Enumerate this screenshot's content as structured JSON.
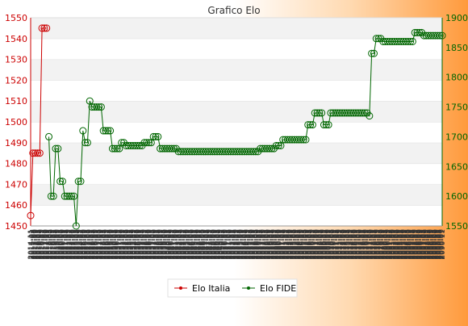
{
  "chart_data": {
    "type": "line",
    "title": "Grafico Elo",
    "y_left": {
      "min": 1450,
      "max": 1550,
      "ticks": [
        1450,
        1460,
        1470,
        1480,
        1490,
        1500,
        1510,
        1520,
        1530,
        1540,
        1550
      ],
      "color": "#cc0000"
    },
    "y_right": {
      "min": 1550,
      "max": 1900,
      "ticks": [
        1550,
        1600,
        1650,
        1700,
        1750,
        1800,
        1850,
        1900
      ],
      "color": "#006600"
    },
    "x_tick_labels": [
      "2014-11",
      "2015-01",
      "2015-03",
      "2015-05",
      "2015-07",
      "2015-09",
      "2015-11",
      "2016-01",
      "2016-03",
      "2016-05",
      "2016-07",
      "2016-09",
      "2016-11",
      "2017-01",
      "2017-03",
      "2017-05",
      "2017-07",
      "2017-09",
      "2017-11",
      "2018-01",
      "2018-03",
      "2018-05",
      "2018-07",
      "2018-09",
      "2018-11",
      "2019-01",
      "2019-03",
      "2019-05",
      "2019-07",
      "2019-09",
      "2019-11",
      "2020-01",
      "2020-03",
      "2020-05",
      "2020-07",
      "2020-09",
      "2020-11",
      "2021-01",
      "2021-03",
      "2021-05",
      "2021-07",
      "2021-09",
      "2021-11",
      "2022-01",
      "2022-03",
      "2022-05",
      "2022-07",
      "2022-09",
      "2022-11",
      "2023-01",
      "2023-03",
      "2023-05",
      "2023-07",
      "2023-09",
      "2023-11",
      "2024-01",
      "2024-03",
      "2024-05",
      "2024-07",
      "2024-09",
      "2024-11",
      "2025-01",
      "2025-03",
      "2025-05",
      "2025-07",
      "2025-09",
      "2025-11",
      "2026-01",
      "2026-03",
      "2026-05",
      "2026-07",
      "2026-09",
      "2026-11",
      "2027-01",
      "2027-03",
      "2027-05",
      "2027-07",
      "2027-09",
      "2027-11",
      "2028-01",
      "2028-03",
      "2028-05",
      "2028-07",
      "2028-09",
      "2028-11",
      "2029-01",
      "2029-03",
      "2029-05",
      "2029-07",
      "2029-09",
      "2029-11",
      "2030-01",
      "2030-03",
      "2030-05",
      "2030-07",
      "2030-09",
      "2030-11",
      "2031-01",
      "2031-03",
      "2031-05",
      "2031-07",
      "2031-09",
      "2031-11",
      "2032-01",
      "2032-03",
      "2032-05",
      "2032-07",
      "2032-09",
      "2032-11",
      "2033-01",
      "2033-03",
      "2033-05",
      "2033-07",
      "2033-09",
      "2033-11",
      "2034-01",
      "2034-03",
      "2034-05",
      "2034-07",
      "2034-09",
      "2034-11",
      "2035-01",
      "2035-03",
      "2035-05",
      "2035-07",
      "2035-09",
      "2035-11",
      "2036-01",
      "2036-03",
      "2036-05",
      "2036-07",
      "2036-09",
      "2036-11",
      "2037-01",
      "2037-03",
      "2037-05",
      "2037-07",
      "2037-09",
      "2037-11",
      "2038-01",
      "2038-03",
      "2038-05",
      "2038-07",
      "2038-09",
      "2038-11",
      "2039-01",
      "2039-03",
      "2039-05",
      "2039-07",
      "2039-09",
      "2039-11",
      "2040-01",
      "2040-03",
      "2040-05",
      "2040-07",
      "2040-09",
      "2040-11",
      "2041-01",
      "2041-03",
      "2041-05",
      "2041-07",
      "2041-09",
      "2041-11",
      "2042-01",
      "2042-03",
      "2042-05",
      "2042-07",
      "2042-09",
      "2042-11",
      "2043-01",
      "2043-03",
      "2043-05",
      "2043-07",
      "2043-09",
      "2043-11",
      "2044-01",
      "2044-03",
      "2044-05",
      "2044-07",
      "2044-09",
      "2044-11",
      "2045-01",
      "2045-03",
      "2045-05",
      "2045-07",
      "2045-09",
      "2045-11",
      "2046-01",
      "2046-03",
      "2046-05",
      "2046-07",
      "2046-09",
      "2046-11",
      "2047-01",
      "2047-03",
      "2047-05",
      "2047-07",
      "2047-09",
      "2047-11",
      "2048-01",
      "2048-03",
      "2048-05",
      "2048-07",
      "2048-09",
      "2048-11",
      "2049-01",
      "2049-03",
      "2049-05",
      "2049-07",
      "2049-09",
      "2049-11",
      "2050-01",
      "2050-03",
      "2050-05",
      "2050-07",
      "2050-09",
      "2050-11",
      "2051-01",
      "2051-03",
      "2051-05",
      "2051-07",
      "2051-09",
      "2051-11",
      "2052-01",
      "2052-03",
      "2052-05",
      "2052-07",
      "2052-09",
      "2052-11",
      "2053-01",
      "2053-03",
      "2053-05",
      "2053-07",
      "2053-09",
      "2053-11",
      "2054-01",
      "2054-03",
      "2054-05",
      "2054-07",
      "2054-09",
      "2054-11",
      "2055-01",
      "2055-03",
      "2055-05",
      "2055-07",
      "2055-09",
      "2055-11",
      "2056-01",
      "2056-03",
      "2056-05",
      "2056-07",
      "2056-09",
      "2056-11",
      "2057-01",
      "2057-03",
      "2057-05",
      "2057-07",
      "2057-09",
      "2057-11",
      "2058-01",
      "2058-03",
      "2058-05",
      "2058-07",
      "2058-09",
      "2058-11",
      "2059-01",
      "2059-03",
      "2059-05",
      "2059-07",
      "2059-09",
      "2059-11",
      "2060-01",
      "2060-03",
      "2060-05",
      "2060-07",
      "2060-09",
      "2060-11",
      "2061-01",
      "2061-03",
      "2061-05",
      "2061-07",
      "2061-09",
      "2061-11",
      "2062-01",
      "2062-03",
      "2062-05",
      "2062-07",
      "2062-09",
      "2062-11",
      "2063-01",
      "2063-03",
      "2063-05",
      "2063-07",
      "2063-09",
      "2063-11",
      "2064-01",
      "2064-03",
      "2064-05",
      "2064-07",
      "2064-09",
      "2064-11",
      "2065-01",
      "2065-03",
      "2065-05",
      "2065-07",
      "2065-09",
      "2065-11",
      "2066-01",
      "2066-03",
      "2066-05",
      "2066-07",
      "2066-09",
      "2066-11",
      "2067-01",
      "2067-03",
      "2067-05",
      "2067-07",
      "2067-09",
      "2067-11",
      "2068-01",
      "2068-03",
      "2068-05",
      "2068-07",
      "2068-09",
      "2068-11",
      "2069-01",
      "2069-03",
      "2069-05",
      "2069-07",
      "2069-09",
      "2069-11",
      "2070-01",
      "2070-03",
      "2070-05",
      "2070-07",
      "2070-09",
      "2070-11",
      "2071-01",
      "2071-03",
      "2071-05",
      "2071-07",
      "2071-09",
      "2071-11",
      "2072-01",
      "2072-03",
      "2072-05",
      "2072-07",
      "2072-09",
      "2072-11",
      "2073-01",
      "2073-03",
      "2073-05",
      "2073-07",
      "2073-09",
      "2073-11",
      "2074-01",
      "2074-03",
      "2074-05",
      "2074-07",
      "2074-09",
      "2074-11",
      "2075-01",
      "2075-03",
      "2075-05",
      "2075-07",
      "2075-09",
      "2075-11",
      "2076-01",
      "2076-03",
      "2076-05",
      "2076-07",
      "2076-09",
      "2076-11",
      "2077-01",
      "2077-03",
      "2077-05",
      "2077-07",
      "2077-09",
      "2077-11",
      "2078-01",
      "2078-03",
      "2078-05",
      "2078-07",
      "2078-09",
      "2078-11",
      "2079-01",
      "2079-03",
      "2079-05",
      "2079-07",
      "2079-09",
      "2079-11",
      "2080-01",
      "2080-03",
      "2080-05",
      "2080-07",
      "2080-09",
      "2080-11",
      "2081-01",
      "2081-03",
      "2081-05",
      "2081-07",
      "2081-09",
      "2081-11",
      "2082-01",
      "2082-03",
      "2082-05",
      "2082-07",
      "2082-09",
      "2082-11",
      "2083-01",
      "2083-03",
      "2083-05",
      "2083-07",
      "2083-09",
      "2083-11",
      "2084-01",
      "2084-03",
      "2084-05",
      "2084-07",
      "2084-09",
      "2084-11",
      "2085-01",
      "2085-03",
      "2085-05",
      "2085-07",
      "2085-09",
      "2085-11",
      "2086-01",
      "2086-03",
      "2086-05",
      "2086-07",
      "2086-09",
      "2086-11",
      "2087-01",
      "2087-03",
      "2087-05",
      "2087-07",
      "2087-09",
      "2087-11",
      "2088-01",
      "2088-03",
      "2088-05",
      "2088-07",
      "2088-09",
      "2088-11",
      "2089-01",
      "2089-03",
      "2089-05",
      "2089-07",
      "2089-09",
      "2089-11",
      "2090-01",
      "2090-03",
      "2090-05",
      "2090-07",
      "2090-09",
      "2090-11"
    ],
    "series": [
      {
        "name": "Elo Italia",
        "axis": "left",
        "color": "#cc0000",
        "values": [
          1455,
          1485,
          1485,
          1485,
          1485,
          1545,
          1545,
          1545
        ]
      },
      {
        "name": "Elo FIDE",
        "axis": "right",
        "color": "#006600",
        "values": [
          null,
          null,
          null,
          null,
          null,
          null,
          null,
          null,
          1700,
          1600,
          1600,
          1680,
          1680,
          1625,
          1625,
          1600,
          1600,
          1600,
          1600,
          1600,
          1550,
          1625,
          1625,
          1710,
          1690,
          1690,
          1760,
          1750,
          1750,
          1750,
          1750,
          1750,
          1710,
          1710,
          1710,
          1710,
          1680,
          1680,
          1680,
          1680,
          1690,
          1690,
          1685,
          1685,
          1685,
          1685,
          1685,
          1685,
          1685,
          1685,
          1690,
          1690,
          1690,
          1690,
          1700,
          1700,
          1700,
          1680,
          1680,
          1680,
          1680,
          1680,
          1680,
          1680,
          1680,
          1675,
          1675,
          1675,
          1675,
          1675,
          1675,
          1675,
          1675,
          1675,
          1675,
          1675,
          1675,
          1675,
          1675,
          1675,
          1675,
          1675,
          1675,
          1675,
          1675,
          1675,
          1675,
          1675,
          1675,
          1675,
          1675,
          1675,
          1675,
          1675,
          1675,
          1675,
          1675,
          1675,
          1675,
          1675,
          1675,
          1680,
          1680,
          1680,
          1680,
          1680,
          1680,
          1680,
          1685,
          1685,
          1685,
          1695,
          1695,
          1695,
          1695,
          1695,
          1695,
          1695,
          1695,
          1695,
          1695,
          1695,
          1720,
          1720,
          1720,
          1740,
          1740,
          1740,
          1740,
          1720,
          1720,
          1720,
          1740,
          1740,
          1740,
          1740,
          1740,
          1740,
          1740,
          1740,
          1740,
          1740,
          1740,
          1740,
          1740,
          1740,
          1740,
          1740,
          1740,
          1735,
          1840,
          1840,
          1865,
          1865,
          1865,
          1860,
          1860,
          1860,
          1860,
          1860,
          1860,
          1860,
          1860,
          1860,
          1860,
          1860,
          1860,
          1860,
          1860,
          1875,
          1875,
          1875,
          1875,
          1870,
          1870,
          1870,
          1870,
          1870,
          1870,
          1870,
          1870,
          1870
        ]
      }
    ],
    "legend_position": "bottom-center",
    "grid": true
  }
}
